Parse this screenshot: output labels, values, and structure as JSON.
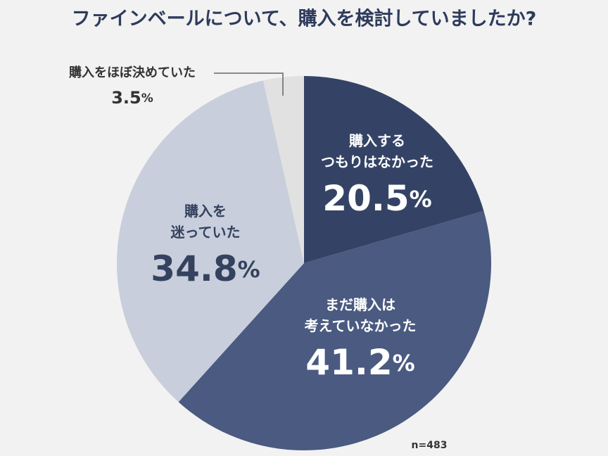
{
  "chart_data": {
    "type": "pie",
    "title": "ファインベールについて、購入を検討していましたか?",
    "categories": [
      "購入する\nつもりはなかった",
      "まだ購入は\n考えていなかった",
      "購入を\n迷っていた",
      "購入をほぼ決めていた"
    ],
    "values": [
      20.5,
      41.2,
      34.8,
      3.5
    ],
    "value_labels": [
      "20.5%",
      "41.2%",
      "34.8%",
      "3.5%"
    ],
    "colors": [
      "#344365",
      "#4a5a80",
      "#c8cedb",
      "#e1e1e1"
    ],
    "note": "n=483"
  }
}
